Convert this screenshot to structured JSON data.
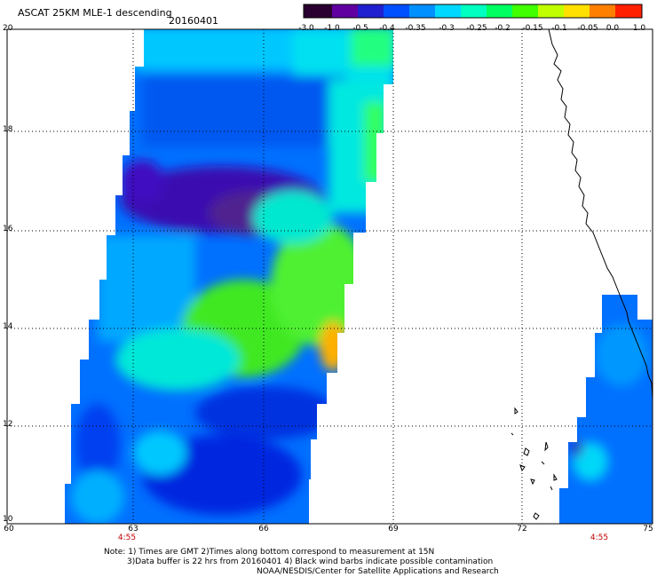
{
  "header": {
    "title": "ASCAT 25KM MLE-1 descending",
    "date": "20160401"
  },
  "colorbar": {
    "labels": [
      "-3.0",
      "-1.0",
      "-0.5",
      "-0.4",
      "-0.35",
      "-0.3",
      "-0.25",
      "-0.2",
      "-0.15",
      "-0.1",
      "-0.05",
      "0.0",
      "1.0"
    ],
    "colors": [
      "#2a0030",
      "#6000a0",
      "#2020d0",
      "#0050ff",
      "#0090ff",
      "#00d8ff",
      "#00ffc0",
      "#00ff60",
      "#40ff00",
      "#c0ff00",
      "#ffe000",
      "#ff8000",
      "#ff2000"
    ]
  },
  "axes": {
    "y_labels": [
      "20",
      "18",
      "16",
      "14",
      "12",
      "10"
    ],
    "x_labels": [
      "60",
      "63",
      "66",
      "69",
      "72",
      "75"
    ]
  },
  "pass_times": [
    "4:55",
    "4:55"
  ],
  "notes": [
    "Note: 1) Times are GMT 2)Times along bottom correspond to measurement at 15N",
    "3)Data buffer is 22 hrs from 20160401 4) Black wind barbs indicate possible contamination",
    "NOAA/NESDIS/Center for Satellite Applications and Research"
  ]
}
